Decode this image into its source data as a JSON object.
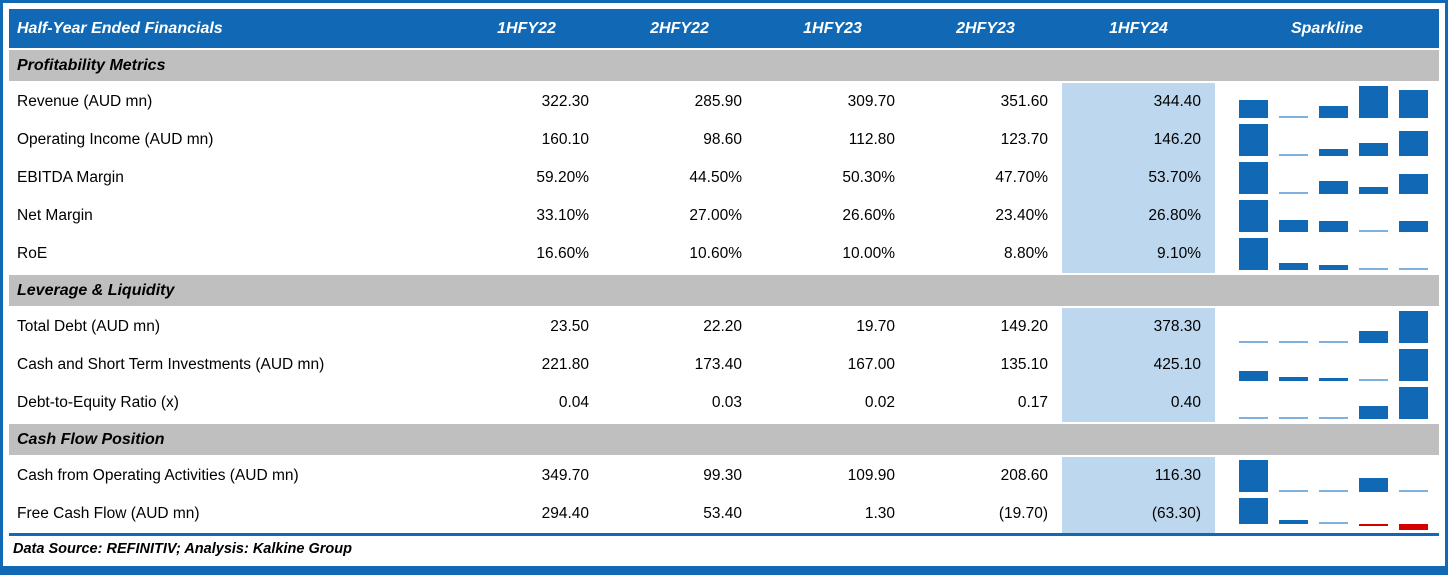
{
  "report": {
    "title": "Half-Year Ended Financials",
    "columns": [
      "1HFY22",
      "2HFY22",
      "1HFY23",
      "2HFY23",
      "1HFY24"
    ],
    "sparkline_header": "Sparkline",
    "highlight_column": "1HFY24",
    "footer": "Data Source: REFINITIV; Analysis: Kalkine Group",
    "sections": [
      {
        "label": "Profitability Metrics",
        "rows": [
          {
            "label": "Revenue (AUD mn)",
            "values": [
              "322.30",
              "285.90",
              "309.70",
              "351.60",
              "344.40"
            ]
          },
          {
            "label": "Operating Income (AUD mn)",
            "values": [
              "160.10",
              "98.60",
              "112.80",
              "123.70",
              "146.20"
            ]
          },
          {
            "label": "EBITDA Margin",
            "values": [
              "59.20%",
              "44.50%",
              "50.30%",
              "47.70%",
              "53.70%"
            ]
          },
          {
            "label": "Net Margin",
            "values": [
              "33.10%",
              "27.00%",
              "26.60%",
              "23.40%",
              "26.80%"
            ]
          },
          {
            "label": "RoE",
            "values": [
              "16.60%",
              "10.60%",
              "10.00%",
              "8.80%",
              "9.10%"
            ]
          }
        ]
      },
      {
        "label": "Leverage & Liquidity",
        "rows": [
          {
            "label": "Total Debt (AUD mn)",
            "values": [
              "23.50",
              "22.20",
              "19.70",
              "149.20",
              "378.30"
            ]
          },
          {
            "label": "Cash and Short Term Investments (AUD mn)",
            "values": [
              "221.80",
              "173.40",
              "167.00",
              "135.10",
              "425.10"
            ]
          },
          {
            "label": "Debt-to-Equity Ratio (x)",
            "values": [
              "0.04",
              "0.03",
              "0.02",
              "0.17",
              "0.40"
            ]
          }
        ]
      },
      {
        "label": "Cash Flow Position",
        "rows": [
          {
            "label": "Cash from Operating Activities (AUD mn)",
            "values": [
              "349.70",
              "99.30",
              "109.90",
              "208.60",
              "116.30"
            ]
          },
          {
            "label": "Free Cash Flow (AUD mn)",
            "values": [
              "294.40",
              "53.40",
              "1.30",
              "(19.70)",
              "(63.30)"
            ]
          }
        ]
      }
    ]
  },
  "colors": {
    "header_blue": "#1169B5",
    "section_gray": "#BFBFBF",
    "highlight_blue": "#BDD7EE",
    "spark_bar_blue": "#1169B5",
    "spark_min_light_blue": "#7FB0DE",
    "spark_negative_red": "#D40000",
    "border_blue": "#1169B5"
  }
}
